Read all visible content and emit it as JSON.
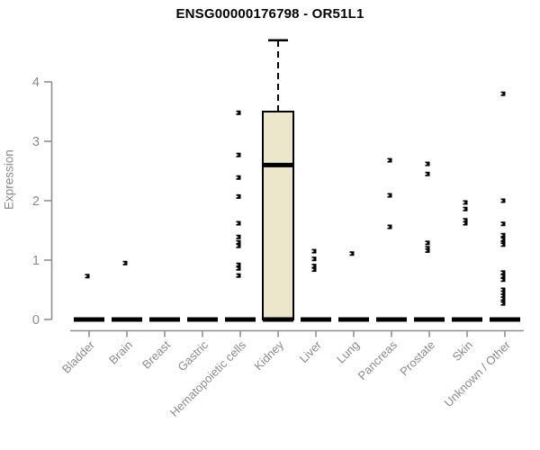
{
  "chart_data": {
    "type": "boxplot",
    "title": "ENSG00000176798 - OR51L1",
    "ylabel": "Expression",
    "xlabel": "",
    "yticks": [
      "0",
      "1",
      "2",
      "3",
      "4"
    ],
    "ylim": [
      0,
      4.8
    ],
    "grid": false,
    "legend": false,
    "categories": [
      {
        "label": "Bladder",
        "q1": 0,
        "median": 0,
        "q3": 0,
        "whisker_low": 0,
        "whisker_high": 0,
        "outliers": [
          0.73
        ]
      },
      {
        "label": "Brain",
        "q1": 0,
        "median": 0,
        "q3": 0,
        "whisker_low": 0,
        "whisker_high": 0,
        "outliers": [
          0.95
        ]
      },
      {
        "label": "Breast",
        "q1": 0,
        "median": 0,
        "q3": 0,
        "whisker_low": 0,
        "whisker_high": 0,
        "outliers": []
      },
      {
        "label": "Gastric",
        "q1": 0,
        "median": 0,
        "q3": 0,
        "whisker_low": 0,
        "whisker_high": 0,
        "outliers": []
      },
      {
        "label": "Hematopoietic cells",
        "q1": 0,
        "median": 0,
        "q3": 0,
        "whisker_low": 0,
        "whisker_high": 0,
        "outliers": [
          3.48,
          2.77,
          2.39,
          2.07,
          1.62,
          1.39,
          1.3,
          1.24,
          0.92,
          0.86,
          0.74
        ]
      },
      {
        "label": "Kidney",
        "q1": 0,
        "median": 2.6,
        "q3": 3.5,
        "whisker_low": 0,
        "whisker_high": 4.7,
        "outliers": []
      },
      {
        "label": "Liver",
        "q1": 0,
        "median": 0,
        "q3": 0,
        "whisker_low": 0,
        "whisker_high": 0,
        "outliers": [
          1.15,
          1.02,
          0.9,
          0.84
        ]
      },
      {
        "label": "Lung",
        "q1": 0,
        "median": 0,
        "q3": 0,
        "whisker_low": 0,
        "whisker_high": 0,
        "outliers": [
          1.11
        ]
      },
      {
        "label": "Pancreas",
        "q1": 0,
        "median": 0,
        "q3": 0,
        "whisker_low": 0,
        "whisker_high": 0,
        "outliers": [
          2.68,
          2.09,
          1.56
        ]
      },
      {
        "label": "Prostate",
        "q1": 0,
        "median": 0,
        "q3": 0,
        "whisker_low": 0,
        "whisker_high": 0,
        "outliers": [
          2.62,
          2.45,
          1.29,
          1.2,
          1.16
        ]
      },
      {
        "label": "Skin",
        "q1": 0,
        "median": 0,
        "q3": 0,
        "whisker_low": 0,
        "whisker_high": 0,
        "outliers": [
          1.97,
          1.86,
          1.67,
          1.62
        ]
      },
      {
        "label": "Unknown / Other",
        "q1": 0,
        "median": 0,
        "q3": 0,
        "whisker_low": 0,
        "whisker_high": 0,
        "outliers": [
          3.8,
          2.0,
          1.61,
          1.42,
          1.35,
          1.29,
          1.26,
          0.79,
          0.73,
          0.67,
          0.5,
          0.45,
          0.4,
          0.35,
          0.3,
          0.27
        ]
      }
    ],
    "colors": {
      "box_fill": "#ece7cb",
      "box_border": "#000000",
      "median": "#000000",
      "outlier": "#000000",
      "axis": "#8f8f8f",
      "tick_label": "#8a8a8a",
      "title": "#000000",
      "background": "#ffffff"
    }
  }
}
